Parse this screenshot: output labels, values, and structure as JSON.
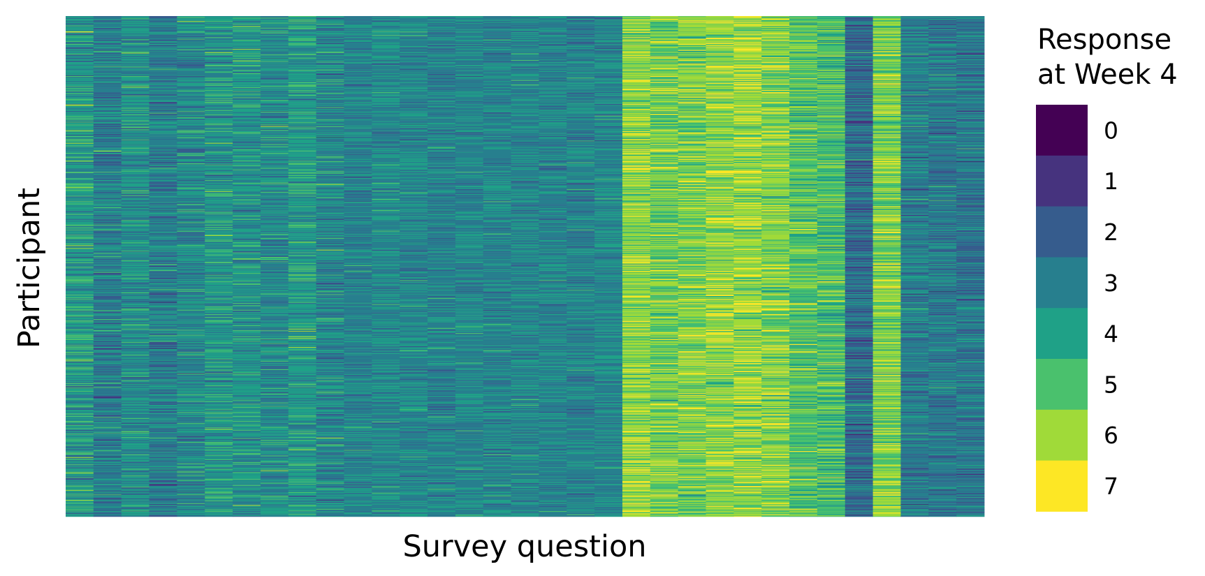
{
  "chart_data": {
    "type": "heatmap",
    "title": "",
    "xlabel": "Survey question",
    "ylabel": "Participant",
    "x_ticks": "none",
    "y_ticks": "none",
    "legend": {
      "title_lines": [
        "Response",
        "at Week 4"
      ],
      "placement": "right",
      "levels": [
        "0",
        "1",
        "2",
        "3",
        "4",
        "5",
        "6",
        "7"
      ],
      "colors": [
        "#440154",
        "#46337e",
        "#365c8d",
        "#277f8e",
        "#1fa187",
        "#4ac16d",
        "#a0da39",
        "#fde725"
      ]
    },
    "grid": "none",
    "n_questions": 33,
    "n_participants": 900,
    "question_mean_response": [
      3.6,
      2.8,
      3.3,
      2.8,
      3.1,
      3.5,
      3.4,
      3.2,
      3.6,
      3.1,
      3.0,
      3.2,
      3.1,
      3.0,
      3.1,
      3.0,
      3.1,
      3.0,
      3.0,
      3.1,
      5.6,
      5.2,
      5.3,
      5.6,
      5.7,
      5.5,
      4.8,
      4.7,
      2.3,
      5.4,
      2.8,
      2.7,
      2.6
    ],
    "question_sd_response": [
      0.9,
      0.8,
      0.8,
      0.8,
      0.8,
      0.8,
      0.8,
      0.8,
      0.8,
      0.8,
      0.6,
      0.6,
      0.6,
      0.6,
      0.6,
      0.6,
      0.6,
      0.6,
      0.6,
      0.6,
      0.8,
      0.8,
      0.8,
      0.8,
      0.8,
      0.8,
      0.8,
      0.8,
      0.8,
      0.8,
      0.7,
      0.7,
      0.7
    ]
  }
}
